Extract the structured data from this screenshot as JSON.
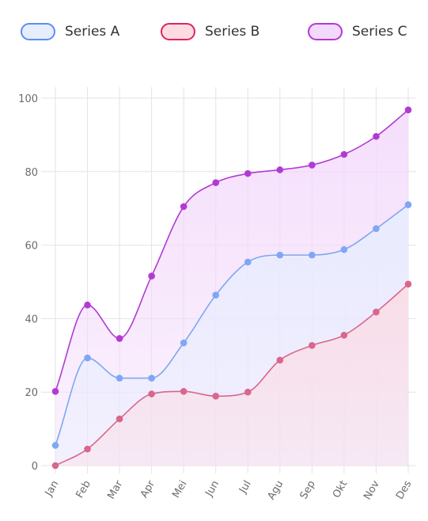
{
  "chart_data": {
    "type": "area",
    "title": "",
    "xlabel": "",
    "ylabel": "",
    "categories": [
      "Jan",
      "Feb",
      "Mar",
      "Apr",
      "Mei",
      "Jun",
      "Jul",
      "Agu",
      "Sep",
      "Okt",
      "Nov",
      "Des"
    ],
    "ylim": [
      0,
      100
    ],
    "yticks": [
      0,
      20,
      40,
      60,
      80,
      100
    ],
    "grid": true,
    "legend_position": "top",
    "series": [
      {
        "name": "Series A",
        "color": "#7fa7f2",
        "fill": "#e6eefe",
        "values": [
          5.5,
          29.3,
          23.8,
          23.8,
          33.4,
          46.4,
          55.4,
          57.3,
          57.3,
          58.8,
          64.5,
          71.0
        ]
      },
      {
        "name": "Series B",
        "color": "#d9668b",
        "fill": "#fcdbe3",
        "values": [
          0,
          4.5,
          12.7,
          19.5,
          20.2,
          18.9,
          20.0,
          28.7,
          32.7,
          35.5,
          41.8,
          49.4
        ]
      },
      {
        "name": "Series C",
        "color": "#b23ad4",
        "fill": "#f3d9fb",
        "values": [
          20.2,
          43.7,
          34.6,
          51.6,
          70.5,
          77.0,
          79.5,
          80.5,
          81.8,
          84.7,
          89.6,
          96.8
        ]
      }
    ]
  }
}
